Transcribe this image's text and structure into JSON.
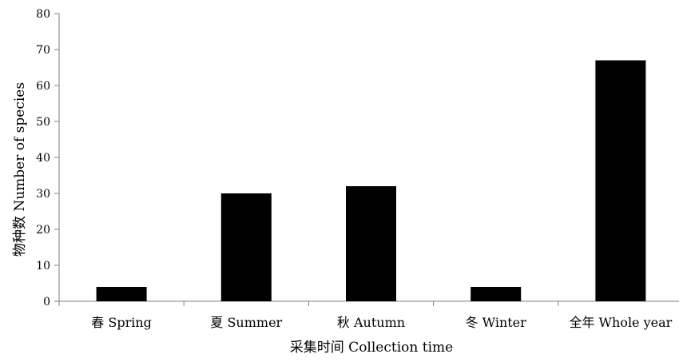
{
  "chart_data": {
    "type": "bar",
    "title": "",
    "xlabel": "采集时间 Collection time",
    "ylabel": "物种数 Number of species",
    "categories": [
      "春 Spring",
      "夏 Summer",
      "秋 Autumn",
      "冬 Winter",
      "全年 Whole year"
    ],
    "values": [
      4,
      30,
      32,
      4,
      67
    ],
    "ylim": [
      0,
      80
    ],
    "yticks": [
      0,
      10,
      20,
      30,
      40,
      50,
      60,
      70,
      80
    ],
    "grid": false,
    "legend": "none",
    "bar_color": "#000000"
  }
}
